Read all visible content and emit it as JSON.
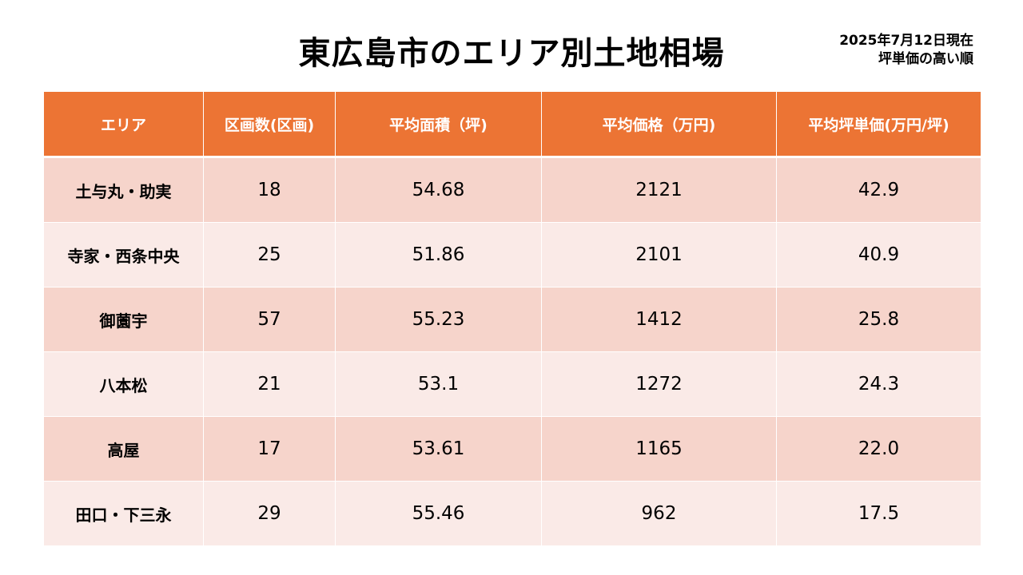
{
  "title": "東広島市のエリア別土地相場",
  "note": {
    "line1": "2025年7月12日現在",
    "line2": "坪単価の高い順"
  },
  "colors": {
    "header_bg": "#ec7434",
    "header_text": "#ffffff",
    "row_odd": "#f6d4cb",
    "row_even": "#faeae7"
  },
  "table": {
    "headers": [
      "エリア",
      "区画数(区画)",
      "平均面積（坪)",
      "平均価格（万円)",
      "平均坪単価(万円/坪)"
    ],
    "rows": [
      [
        "土与丸・助実",
        "18",
        "54.68",
        "2121",
        "42.9"
      ],
      [
        "寺家・西条中央",
        "25",
        "51.86",
        "2101",
        "40.9"
      ],
      [
        "御薗宇",
        "57",
        "55.23",
        "1412",
        "25.8"
      ],
      [
        "八本松",
        "21",
        "53.1",
        "1272",
        "24.3"
      ],
      [
        "高屋",
        "17",
        "53.61",
        "1165",
        "22.0"
      ],
      [
        "田口・下三永",
        "29",
        "55.46",
        "962",
        "17.5"
      ]
    ]
  }
}
